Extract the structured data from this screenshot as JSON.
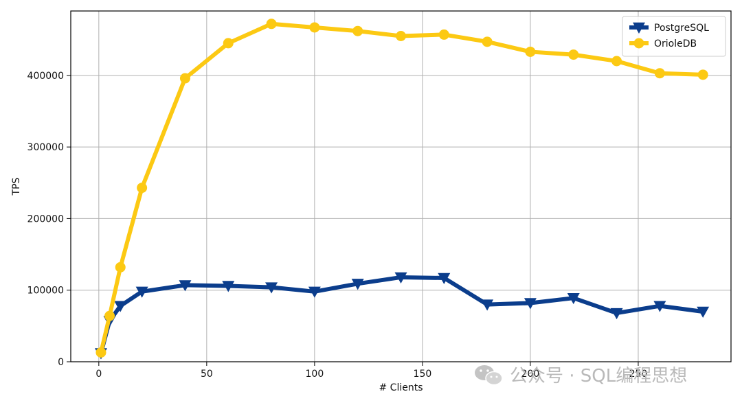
{
  "chart_data": {
    "type": "line",
    "title": "",
    "xlabel": "# Clients",
    "ylabel": "TPS",
    "xlim": [
      -13,
      293
    ],
    "ylim": [
      0,
      490000
    ],
    "xticks": [
      0,
      50,
      100,
      150,
      200,
      250
    ],
    "yticks": [
      0,
      100000,
      200000,
      300000,
      400000
    ],
    "grid": true,
    "legend_position": "top-right",
    "series": [
      {
        "name": "PostgreSQL",
        "color": "#0b3d8c",
        "marker": "triangle-down",
        "x": [
          1,
          5,
          10,
          20,
          40,
          60,
          80,
          100,
          120,
          140,
          160,
          180,
          200,
          220,
          240,
          260,
          280
        ],
        "y": [
          12000,
          57000,
          78000,
          98000,
          107000,
          106000,
          104000,
          98000,
          109000,
          118000,
          117000,
          80000,
          82000,
          89000,
          68000,
          78000,
          70000
        ]
      },
      {
        "name": "OrioleDB",
        "color": "#fcc913",
        "marker": "circle",
        "x": [
          1,
          5,
          10,
          20,
          40,
          60,
          80,
          100,
          120,
          140,
          160,
          180,
          200,
          220,
          240,
          260,
          280
        ],
        "y": [
          13000,
          64000,
          132000,
          243000,
          396000,
          445000,
          472000,
          467000,
          462000,
          455000,
          457000,
          447000,
          433000,
          429000,
          420000,
          403000,
          401000
        ]
      }
    ]
  },
  "watermark": {
    "text": "公众号 · SQL编程思想",
    "icon": "wechat-icon"
  }
}
